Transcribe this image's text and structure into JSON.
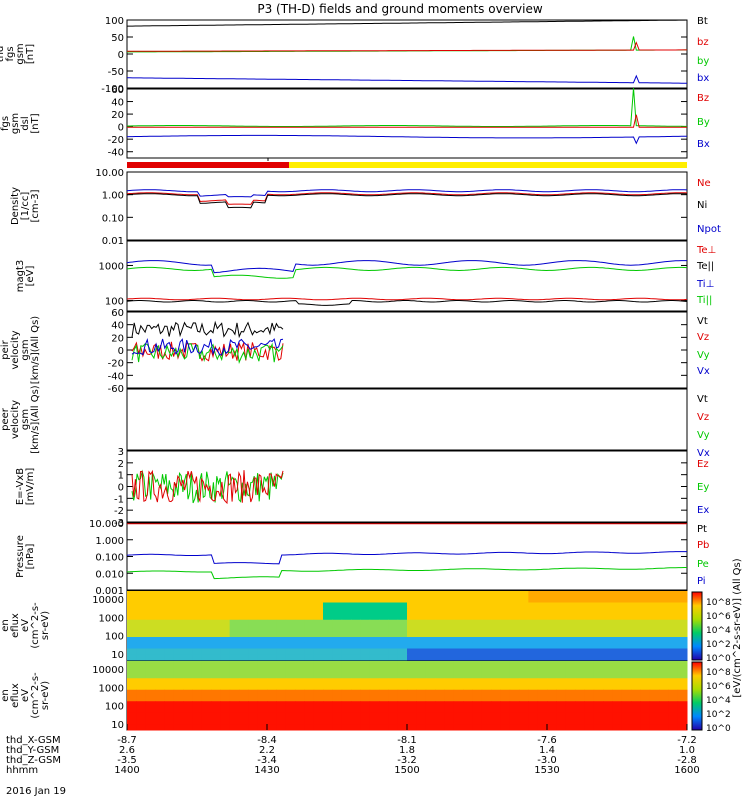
{
  "title": "P3 (TH-D) fields and ground moments overview",
  "colors": {
    "black": "#000000",
    "red": "#e00000",
    "green": "#00c800",
    "blue": "#0000cc",
    "yellow": "#ffee00"
  },
  "chart_data": [
    {
      "type": "line",
      "panel": "fgs_gsm",
      "ylabel": [
        "thd",
        "fgs",
        "gsm",
        "[nT]"
      ],
      "yticks": [
        "100",
        "50",
        "0",
        "-50",
        "-100"
      ],
      "ylim": [
        -100,
        100
      ],
      "series": [
        {
          "name": "Bt",
          "color": "black",
          "start": 80,
          "end": 98
        },
        {
          "name": "bz",
          "color": "red",
          "start": 6,
          "end": 12
        },
        {
          "name": "by",
          "color": "green",
          "start": 8,
          "end": 12
        },
        {
          "name": "bx",
          "color": "blue",
          "start": -70,
          "end": -85
        }
      ]
    },
    {
      "type": "line",
      "panel": "fgs_dsl",
      "ylabel": [
        "thd",
        "fgs",
        "gsm",
        "dsl",
        "[nT]"
      ],
      "yticks": [
        "60",
        "40",
        "20",
        "0",
        "-20",
        "-40"
      ],
      "ylim": [
        -50,
        60
      ],
      "series": [
        {
          "name": "Bz",
          "color": "red"
        },
        {
          "name": "By",
          "color": "green"
        },
        {
          "name": "Bx",
          "color": "blue"
        }
      ]
    },
    {
      "type": "line",
      "panel": "density",
      "ylabel": [
        "Density",
        "[1/cc]",
        "[cm-3]"
      ],
      "yticks": [
        "10.00",
        "1.00",
        "0.10",
        "0.01"
      ],
      "ylim": [
        0.01,
        10
      ],
      "scale": "log",
      "series": [
        {
          "name": "Ne",
          "color": "red"
        },
        {
          "name": "Ni",
          "color": "black"
        },
        {
          "name": "Npot",
          "color": "blue"
        }
      ]
    },
    {
      "type": "line",
      "panel": "temperature",
      "ylabel": [
        "magt3",
        "[eV]"
      ],
      "yticks": [
        "1000",
        "100"
      ],
      "ylim": [
        50,
        5000
      ],
      "scale": "log",
      "series": [
        {
          "name": "Te⊥",
          "color": "red"
        },
        {
          "name": "Te||",
          "color": "black"
        },
        {
          "name": "Ti⊥",
          "color": "blue"
        },
        {
          "name": "Ti||",
          "color": "green"
        }
      ]
    },
    {
      "type": "line",
      "panel": "peir_velocity",
      "ylabel": [
        "thd",
        "peir",
        "velocity",
        "gsm",
        "[km/s](All Qs)"
      ],
      "yticks": [
        "60",
        "40",
        "20",
        "0",
        "-20",
        "-40",
        "-60"
      ],
      "ylim": [
        -60,
        60
      ],
      "series": [
        {
          "name": "Vt",
          "color": "black"
        },
        {
          "name": "Vz",
          "color": "red"
        },
        {
          "name": "Vy",
          "color": "green"
        },
        {
          "name": "Vx",
          "color": "blue"
        }
      ]
    },
    {
      "type": "line",
      "panel": "peer_velocity",
      "ylabel": [
        "thd",
        "peer",
        "velocity",
        "gsm",
        "[km/s](All Qs)"
      ],
      "yticks": [],
      "series": [
        {
          "name": "Vt",
          "color": "black"
        },
        {
          "name": "Vz",
          "color": "red"
        },
        {
          "name": "Vy",
          "color": "green"
        },
        {
          "name": "Vx",
          "color": "blue"
        }
      ]
    },
    {
      "type": "line",
      "panel": "efield",
      "ylabel": [
        "E=-VxB",
        "[mV/m]"
      ],
      "yticks": [
        "3",
        "2",
        "1",
        "0",
        "-1",
        "-2",
        "-3"
      ],
      "ylim": [
        -3,
        3
      ],
      "series": [
        {
          "name": "Ez",
          "color": "red"
        },
        {
          "name": "Ey",
          "color": "green"
        },
        {
          "name": "Ex",
          "color": "blue"
        }
      ]
    },
    {
      "type": "line",
      "panel": "pressure",
      "ylabel": [
        "Pressure",
        "[nPa]"
      ],
      "yticks": [
        "10.000",
        "1.000",
        "0.100",
        "0.010",
        "0.001"
      ],
      "ylim": [
        0.001,
        10
      ],
      "scale": "log",
      "series": [
        {
          "name": "Pt",
          "color": "black"
        },
        {
          "name": "Pb",
          "color": "red"
        },
        {
          "name": "Pe",
          "color": "green"
        },
        {
          "name": "Pi",
          "color": "blue"
        }
      ]
    },
    {
      "type": "heatmap",
      "panel": "peir_eflux",
      "ylabel": [
        "thd",
        "peir",
        "en",
        "eflux",
        "eV",
        "(cm^2-s-",
        "sr-eV)"
      ],
      "yticks": [
        "10000",
        "1000",
        "100",
        "10"
      ],
      "scale": "log"
    },
    {
      "type": "heatmap",
      "panel": "peer_eflux",
      "ylabel": [
        "thd",
        "peer",
        "en",
        "eflux",
        "eV",
        "(cm^2-s-",
        "sr-eV)"
      ],
      "yticks": [
        "10000",
        "1000",
        "100",
        "10"
      ],
      "scale": "log"
    }
  ],
  "colorbar": {
    "top": {
      "labels": [
        "10^8",
        "10^6",
        "10^4",
        "10^2",
        "10^0"
      ]
    },
    "bottom": {
      "labels": [
        "10^8",
        "10^6",
        "10^4",
        "10^2",
        "10^0"
      ]
    },
    "title": "[eV/(cm^2-s-sr-eV)] (All Qs)"
  },
  "xaxis": {
    "rows": [
      {
        "name": "thd_X-GSM",
        "values": [
          "-8.7",
          "-8.4",
          "-8.1",
          "-7.6",
          "-7.2"
        ]
      },
      {
        "name": "thd_Y-GSM",
        "values": [
          "2.6",
          "2.2",
          "1.8",
          "1.4",
          "1.0"
        ]
      },
      {
        "name": "thd_Z-GSM",
        "values": [
          "-3.5",
          "-3.4",
          "-3.2",
          "-3.0",
          "-2.8"
        ]
      },
      {
        "name": "hhmm",
        "values": [
          "1400",
          "1430",
          "1500",
          "1530",
          "1600"
        ]
      }
    ],
    "date": "2016 Jan 19"
  }
}
